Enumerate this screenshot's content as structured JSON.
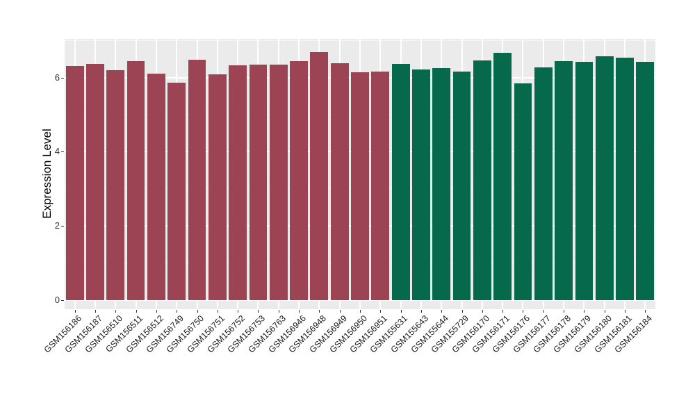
{
  "chart_data": {
    "type": "bar",
    "title": "",
    "xlabel": "",
    "ylabel": "Expression Level",
    "ylim": [
      0,
      7.04
    ],
    "yticks": [
      0,
      2,
      4,
      6
    ],
    "yticks_minor": [
      1,
      3,
      5,
      7
    ],
    "grid": "on",
    "legend": "none",
    "panel_background": "#EBEBEB",
    "gridline_color": "#FFFFFF",
    "categories": [
      "GSM156186",
      "GSM156187",
      "GSM156510",
      "GSM156511",
      "GSM156512",
      "GSM156749",
      "GSM156750",
      "GSM156751",
      "GSM156752",
      "GSM156753",
      "GSM156763",
      "GSM156946",
      "GSM156948",
      "GSM156949",
      "GSM156950",
      "GSM156951",
      "GSM155631",
      "GSM155643",
      "GSM155644",
      "GSM155729",
      "GSM156170",
      "GSM156171",
      "GSM156176",
      "GSM156177",
      "GSM156178",
      "GSM156179",
      "GSM156180",
      "GSM156181",
      "GSM156184"
    ],
    "values": [
      6.32,
      6.37,
      6.2,
      6.45,
      6.11,
      5.87,
      6.49,
      6.08,
      6.33,
      6.35,
      6.35,
      6.44,
      6.69,
      6.39,
      6.15,
      6.16,
      6.37,
      6.22,
      6.26,
      6.17,
      6.47,
      6.67,
      5.84,
      6.27,
      6.44,
      6.43,
      6.58,
      6.54,
      6.42
    ],
    "bar_groups": [
      "red",
      "red",
      "red",
      "red",
      "red",
      "red",
      "red",
      "red",
      "red",
      "red",
      "red",
      "red",
      "red",
      "red",
      "red",
      "red",
      "green",
      "green",
      "green",
      "green",
      "green",
      "green",
      "green",
      "green",
      "green",
      "green",
      "green",
      "green",
      "green"
    ],
    "palette": {
      "red": "#9C4454",
      "green": "#07694B"
    }
  }
}
